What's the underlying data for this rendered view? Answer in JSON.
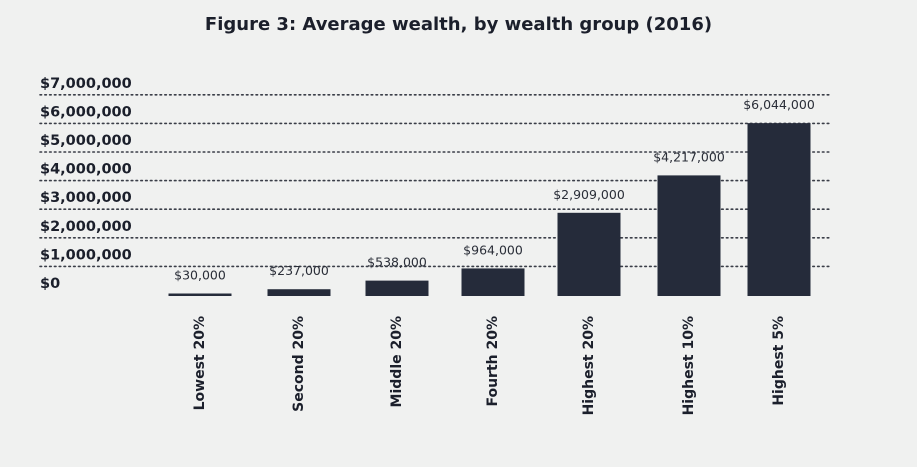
{
  "chart_data": {
    "type": "bar",
    "title": "Figure 3: Average wealth, by wealth group (2016)",
    "xlabel": "",
    "ylabel": "",
    "categories": [
      "Lowest 20%",
      "Second 20%",
      "Middle 20%",
      "Fourth 20%",
      "Highest 20%",
      "Highest 10%",
      "Highest 5%"
    ],
    "values": [
      30000,
      237000,
      538000,
      964000,
      2909000,
      4217000,
      6044000
    ],
    "value_labels": [
      "$30,000",
      "$237,000",
      "$538,000",
      "$964,000",
      "$2,909,000",
      "$4,217,000",
      "$6,044,000"
    ],
    "yticks": [
      0,
      1000000,
      2000000,
      3000000,
      4000000,
      5000000,
      6000000,
      7000000
    ],
    "ytick_labels": [
      "$0",
      "$1,000,000",
      "$2,000,000",
      "$3,000,000",
      "$4,000,000",
      "$5,000,000",
      "$6,000,000",
      "$7,000,000"
    ],
    "ylim": [
      0,
      7000000
    ],
    "grid": true,
    "colors": {
      "bar": "#252b3a",
      "background": "#f0f1f0",
      "text": "#1b1f2b"
    }
  }
}
